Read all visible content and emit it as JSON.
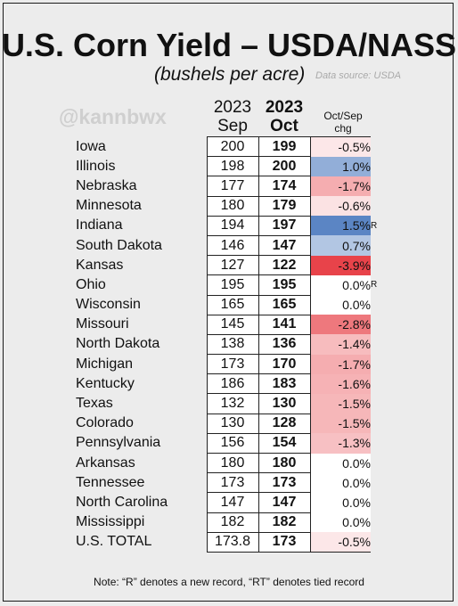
{
  "header": {
    "title": "U.S. Corn Yield – USDA/NASS",
    "subtitle": "(bushels per acre)",
    "source": "Data source: USDA",
    "handle": "@kannbwx"
  },
  "columns": {
    "sep_year": "2023",
    "sep_month": "Sep",
    "oct_year": "2023",
    "oct_month": "Oct",
    "chg_line1": "Oct/Sep",
    "chg_line2": "chg"
  },
  "colors": {
    "positive": "#5b85c4",
    "negative": "#e8434a",
    "neutral": "#ffffff"
  },
  "chart_data": {
    "type": "table",
    "title": "U.S. Corn Yield – USDA/NASS",
    "subtitle": "(bushels per acre)",
    "columns": [
      "2023 Sep",
      "2023 Oct",
      "Oct/Sep chg"
    ],
    "rows": [
      {
        "state": "Iowa",
        "sep": "200",
        "oct": "199",
        "chg": "-0.5%",
        "pct": -0.5,
        "mark": ""
      },
      {
        "state": "Illinois",
        "sep": "198",
        "oct": "200",
        "chg": "1.0%",
        "pct": 1.0,
        "mark": ""
      },
      {
        "state": "Nebraska",
        "sep": "177",
        "oct": "174",
        "chg": "-1.7%",
        "pct": -1.7,
        "mark": ""
      },
      {
        "state": "Minnesota",
        "sep": "180",
        "oct": "179",
        "chg": "-0.6%",
        "pct": -0.6,
        "mark": ""
      },
      {
        "state": "Indiana",
        "sep": "194",
        "oct": "197",
        "chg": "1.5%",
        "pct": 1.5,
        "mark": "R"
      },
      {
        "state": "South Dakota",
        "sep": "146",
        "oct": "147",
        "chg": "0.7%",
        "pct": 0.7,
        "mark": ""
      },
      {
        "state": "Kansas",
        "sep": "127",
        "oct": "122",
        "chg": "-3.9%",
        "pct": -3.9,
        "mark": ""
      },
      {
        "state": "Ohio",
        "sep": "195",
        "oct": "195",
        "chg": "0.0%",
        "pct": 0.0,
        "mark": "R"
      },
      {
        "state": "Wisconsin",
        "sep": "165",
        "oct": "165",
        "chg": "0.0%",
        "pct": 0.0,
        "mark": ""
      },
      {
        "state": "Missouri",
        "sep": "145",
        "oct": "141",
        "chg": "-2.8%",
        "pct": -2.8,
        "mark": ""
      },
      {
        "state": "North Dakota",
        "sep": "138",
        "oct": "136",
        "chg": "-1.4%",
        "pct": -1.4,
        "mark": ""
      },
      {
        "state": "Michigan",
        "sep": "173",
        "oct": "170",
        "chg": "-1.7%",
        "pct": -1.7,
        "mark": ""
      },
      {
        "state": "Kentucky",
        "sep": "186",
        "oct": "183",
        "chg": "-1.6%",
        "pct": -1.6,
        "mark": ""
      },
      {
        "state": "Texas",
        "sep": "132",
        "oct": "130",
        "chg": "-1.5%",
        "pct": -1.5,
        "mark": ""
      },
      {
        "state": "Colorado",
        "sep": "130",
        "oct": "128",
        "chg": "-1.5%",
        "pct": -1.5,
        "mark": ""
      },
      {
        "state": "Pennsylvania",
        "sep": "156",
        "oct": "154",
        "chg": "-1.3%",
        "pct": -1.3,
        "mark": ""
      },
      {
        "state": "Arkansas",
        "sep": "180",
        "oct": "180",
        "chg": "0.0%",
        "pct": 0.0,
        "mark": ""
      },
      {
        "state": "Tennessee",
        "sep": "173",
        "oct": "173",
        "chg": "0.0%",
        "pct": 0.0,
        "mark": ""
      },
      {
        "state": "North Carolina",
        "sep": "147",
        "oct": "147",
        "chg": "0.0%",
        "pct": 0.0,
        "mark": ""
      },
      {
        "state": "Mississippi",
        "sep": "182",
        "oct": "182",
        "chg": "0.0%",
        "pct": 0.0,
        "mark": ""
      },
      {
        "state": "U.S. TOTAL",
        "sep": "173.8",
        "oct": "173",
        "chg": "-0.5%",
        "pct": -0.5,
        "mark": ""
      }
    ]
  },
  "footer": {
    "note": "Note: “R” denotes a new record, “RT” denotes tied record"
  }
}
